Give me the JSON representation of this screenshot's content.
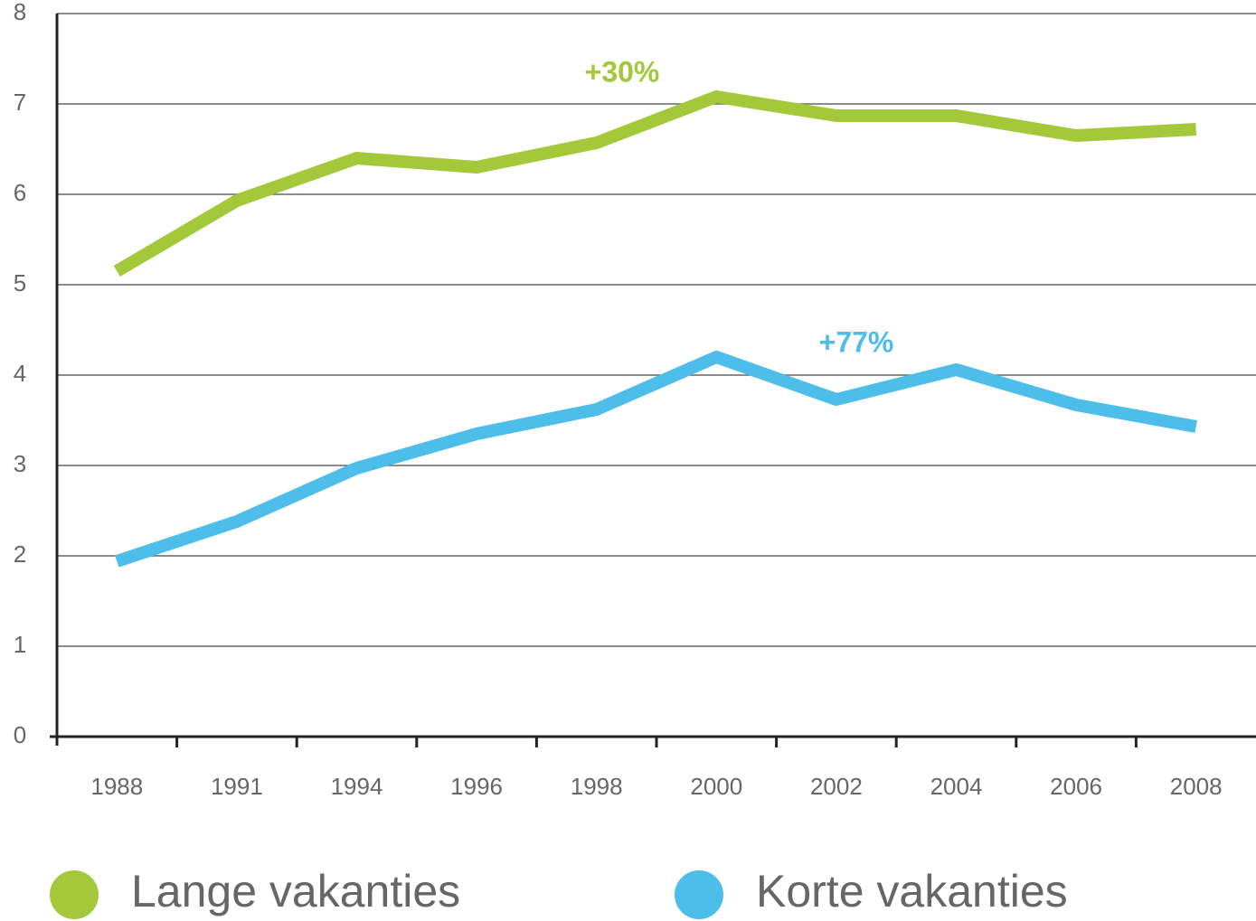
{
  "chart_data": {
    "type": "line",
    "categories": [
      "1988",
      "1991",
      "1994",
      "1996",
      "1998",
      "2000",
      "2002",
      "2004",
      "2006",
      "2008"
    ],
    "series": [
      {
        "name": "Lange vakanties",
        "color": "#a3c93a",
        "values": [
          5.15,
          5.93,
          6.4,
          6.3,
          6.57,
          7.08,
          6.87,
          6.87,
          6.65,
          6.72
        ]
      },
      {
        "name": "Korte vakanties",
        "color": "#4dbde9",
        "values": [
          1.94,
          2.38,
          2.97,
          3.35,
          3.62,
          4.2,
          3.73,
          4.06,
          3.67,
          3.43
        ]
      }
    ],
    "annotations": [
      "+30%",
      "+77%"
    ],
    "ylim": [
      0,
      8
    ],
    "yticks": [
      0,
      1,
      2,
      3,
      4,
      5,
      6,
      7,
      8
    ],
    "grid": true,
    "legend": "bottom"
  }
}
